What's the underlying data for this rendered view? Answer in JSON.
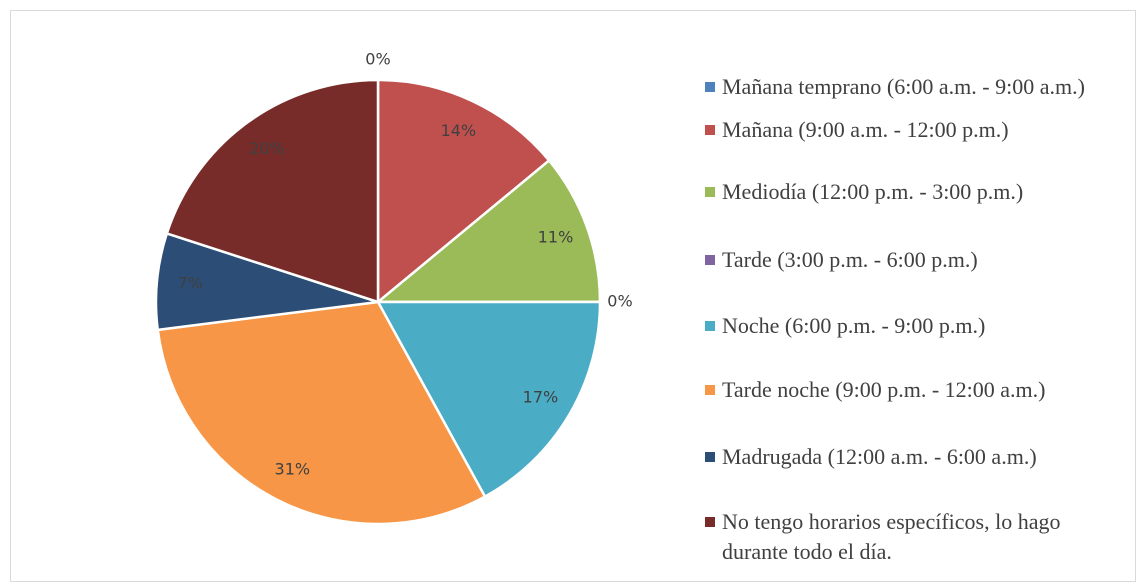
{
  "chart_data": {
    "type": "pie",
    "categories": [
      "Mañana temprano (6:00 a.m. - 9:00 a.m.)",
      "Mañana (9:00 a.m. - 12:00 p.m.)",
      "Mediodía (12:00 p.m. - 3:00 p.m.)",
      "Tarde (3:00 p.m. - 6:00 p.m.)",
      "Noche (6:00 p.m. - 9:00 p.m.)",
      "Tarde noche (9:00 p.m. - 12:00 a.m.)",
      "Madrugada (12:00 a.m. - 6:00 a.m.)",
      "No tengo horarios específicos, lo hago durante todo el día."
    ],
    "values": [
      0,
      14,
      11,
      0,
      17,
      31,
      7,
      20
    ],
    "value_labels": [
      "0%",
      "14%",
      "11%",
      "0%",
      "17%",
      "31%",
      "7%",
      "20%"
    ],
    "colors": [
      "#4F81BD",
      "#C0504D",
      "#9BBB59",
      "#8064A2",
      "#4BACC6",
      "#F79646",
      "#2C4D75",
      "#772C2A"
    ],
    "legend": "right"
  }
}
